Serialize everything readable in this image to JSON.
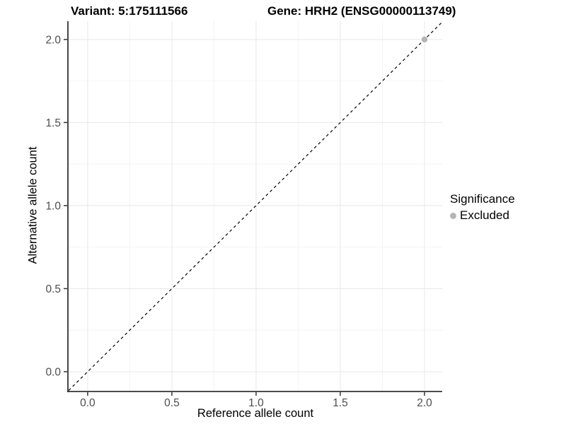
{
  "titles": {
    "variant": "Variant: 5:175111566",
    "gene": "Gene: HRH2 (ENSG00000113749)"
  },
  "legend": {
    "title": "Significance",
    "items": [
      {
        "label": "Excluded",
        "color": "#b5b5b5"
      }
    ]
  },
  "colors": {
    "grid_major": "#e8e8e8",
    "grid_minor": "#f4f4f4",
    "axis": "#333333",
    "tick_text": "#4d4d4d",
    "background": "#ffffff"
  },
  "chart_data": {
    "type": "scatter",
    "title_left": "Variant: 5:175111566",
    "title_right": "Gene: HRH2 (ENSG00000113749)",
    "xlabel": "Reference allele count",
    "ylabel": "Alternative allele count",
    "xlim": [
      -0.113,
      2.105
    ],
    "ylim": [
      -0.115,
      2.11
    ],
    "x_ticks": [
      0,
      0.5,
      1,
      1.5,
      2
    ],
    "x_tick_labels": [
      "0.0",
      "0.5",
      "1.0",
      "1.5",
      "2.0"
    ],
    "y_ticks": [
      0,
      0.5,
      1,
      1.5,
      2
    ],
    "y_tick_labels": [
      "0.0",
      "0.5",
      "1.0",
      "1.5",
      "2.0"
    ],
    "grid": "major+minor",
    "legend_position": "right",
    "series": [
      {
        "name": "Excluded",
        "color": "#b5b5b5",
        "points": [
          {
            "x": 2.0,
            "y": 2.0
          }
        ]
      }
    ],
    "reference_line": {
      "type": "identity",
      "slope": 1,
      "intercept": 0,
      "line_style": "dashed",
      "color": "#000000"
    }
  }
}
